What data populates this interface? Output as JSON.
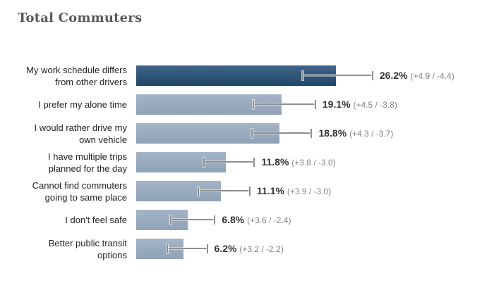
{
  "chart_data": {
    "type": "bar",
    "orientation": "horizontal",
    "title": "Total Commuters",
    "categories": [
      "My work schedule differs from other drivers",
      "I prefer my alone time",
      "I would rather drive my own vehicle",
      "I have multiple trips planned for the day",
      "Cannot find commuters going to same place",
      "I don't feel safe",
      "Better public transit options"
    ],
    "values": [
      26.2,
      19.1,
      18.8,
      11.8,
      11.1,
      6.8,
      6.2
    ],
    "error_plus": [
      4.9,
      4.5,
      4.3,
      3.8,
      3.9,
      3.6,
      3.2
    ],
    "error_minus": [
      4.4,
      3.8,
      3.7,
      3.0,
      3.0,
      2.4,
      2.2
    ],
    "value_labels": [
      "26.2% (+4.9 / -4.4)",
      "19.1% (+4.5 / -3.8)",
      "18.8% (+4.3 / -3.7)",
      "11.8% (+3.8 / -3.0)",
      "11.1% (+3.9 / -3.0)",
      "6.8% (+3.6 / -2.4)",
      "6.2% (+3.2 / -2.2)"
    ],
    "unit": "%",
    "xlim": [
      0,
      45
    ],
    "grid": false,
    "legend": false,
    "highlighted_index": 0
  },
  "rows": [
    {
      "label": "My work schedule differs from other drivers",
      "value_display": "26.2%",
      "ci_display": "(+4.9 / -4.4)"
    },
    {
      "label": "I prefer my alone time",
      "value_display": "19.1%",
      "ci_display": "(+4.5 / -3.8)"
    },
    {
      "label": "I would rather drive my own vehicle",
      "value_display": "18.8%",
      "ci_display": "(+4.3 / -3.7)"
    },
    {
      "label": "I have multiple trips planned for the day",
      "value_display": "11.8%",
      "ci_display": "(+3.8 / -3.0)"
    },
    {
      "label": "Cannot find commuters going to same place",
      "value_display": "11.1%",
      "ci_display": "(+3.9 / -3.0)"
    },
    {
      "label": "I don't feel safe",
      "value_display": "6.8%",
      "ci_display": "(+3.6 / -2.4)"
    },
    {
      "label": "Better public transit options",
      "value_display": "6.2%",
      "ci_display": "(+3.2 / -2.2)"
    }
  ],
  "colors": {
    "highlight_bar_top": "#40658a",
    "highlight_bar_bottom": "#1f4566",
    "bar_top": "#a5b4c7",
    "bar_bottom": "#8fa2b6",
    "error_bar": "#8e8e8e",
    "title_text": "#58595b",
    "label_text": "#222222",
    "value_text": "#333333",
    "ci_text": "#848484",
    "background": "#ffffff"
  }
}
